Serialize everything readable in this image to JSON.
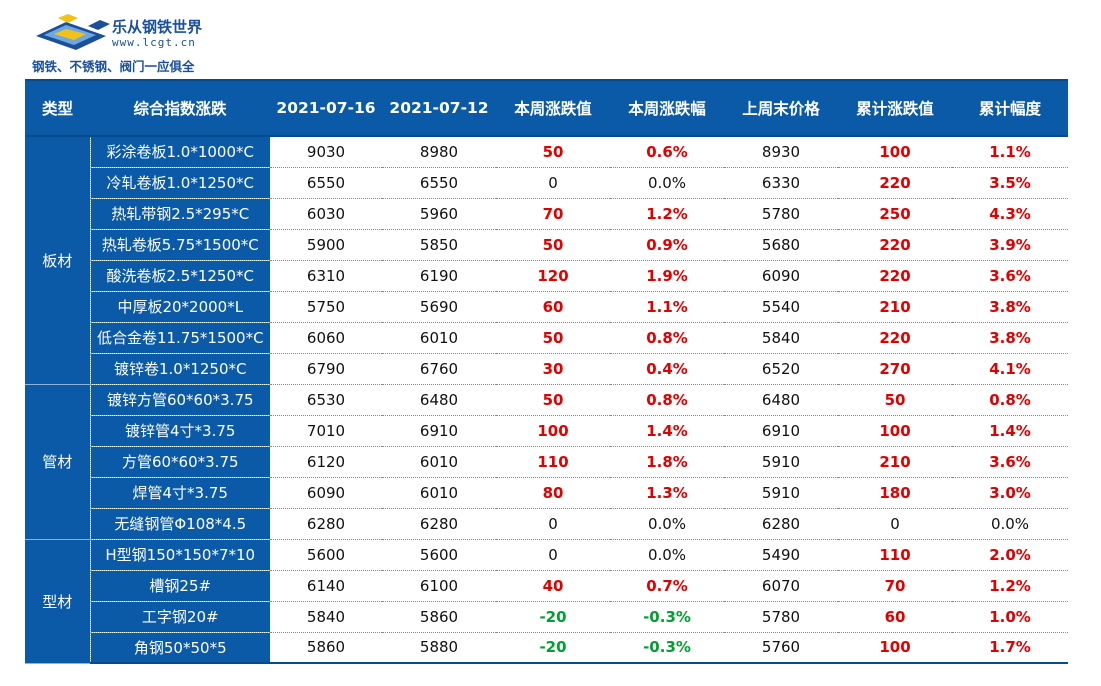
{
  "logo": {
    "name": "乐从钢铁世界",
    "url": "www.lcgt.cn",
    "slogan": "钢铁、不锈钢、阀门一应俱全"
  },
  "table": {
    "headers": [
      "类型",
      "综合指数涨跌",
      "2021-07-16",
      "2021-07-12",
      "本周涨跌值",
      "本周涨跌幅",
      "上周末价格",
      "累计涨跌值",
      "累计幅度"
    ],
    "groups": [
      {
        "type": "板材",
        "rows": [
          {
            "name": "彩涂卷板1.0*1000*C",
            "d1": "9030",
            "d2": "8980",
            "wchg": "50",
            "wpct": "0.6%",
            "last": "8930",
            "cchg": "100",
            "cpct": "1.1%"
          },
          {
            "name": "冷轧卷板1.0*1250*C",
            "d1": "6550",
            "d2": "6550",
            "wchg": "0",
            "wpct": "0.0%",
            "last": "6330",
            "cchg": "220",
            "cpct": "3.5%"
          },
          {
            "name": "热轧带钢2.5*295*C",
            "d1": "6030",
            "d2": "5960",
            "wchg": "70",
            "wpct": "1.2%",
            "last": "5780",
            "cchg": "250",
            "cpct": "4.3%"
          },
          {
            "name": "热轧卷板5.75*1500*C",
            "d1": "5900",
            "d2": "5850",
            "wchg": "50",
            "wpct": "0.9%",
            "last": "5680",
            "cchg": "220",
            "cpct": "3.9%"
          },
          {
            "name": "酸洗卷板2.5*1250*C",
            "d1": "6310",
            "d2": "6190",
            "wchg": "120",
            "wpct": "1.9%",
            "last": "6090",
            "cchg": "220",
            "cpct": "3.6%"
          },
          {
            "name": "中厚板20*2000*L",
            "d1": "5750",
            "d2": "5690",
            "wchg": "60",
            "wpct": "1.1%",
            "last": "5540",
            "cchg": "210",
            "cpct": "3.8%"
          },
          {
            "name": "低合金卷11.75*1500*C",
            "d1": "6060",
            "d2": "6010",
            "wchg": "50",
            "wpct": "0.8%",
            "last": "5840",
            "cchg": "220",
            "cpct": "3.8%"
          },
          {
            "name": "镀锌卷1.0*1250*C",
            "d1": "6790",
            "d2": "6760",
            "wchg": "30",
            "wpct": "0.4%",
            "last": "6520",
            "cchg": "270",
            "cpct": "4.1%"
          }
        ]
      },
      {
        "type": "管材",
        "rows": [
          {
            "name": "镀锌方管60*60*3.75",
            "d1": "6530",
            "d2": "6480",
            "wchg": "50",
            "wpct": "0.8%",
            "last": "6480",
            "cchg": "50",
            "cpct": "0.8%"
          },
          {
            "name": "镀锌管4寸*3.75",
            "d1": "7010",
            "d2": "6910",
            "wchg": "100",
            "wpct": "1.4%",
            "last": "6910",
            "cchg": "100",
            "cpct": "1.4%"
          },
          {
            "name": "方管60*60*3.75",
            "d1": "6120",
            "d2": "6010",
            "wchg": "110",
            "wpct": "1.8%",
            "last": "5910",
            "cchg": "210",
            "cpct": "3.6%"
          },
          {
            "name": "焊管4寸*3.75",
            "d1": "6090",
            "d2": "6010",
            "wchg": "80",
            "wpct": "1.3%",
            "last": "5910",
            "cchg": "180",
            "cpct": "3.0%"
          },
          {
            "name": "无缝钢管Φ108*4.5",
            "d1": "6280",
            "d2": "6280",
            "wchg": "0",
            "wpct": "0.0%",
            "last": "6280",
            "cchg": "0",
            "cpct": "0.0%"
          }
        ]
      },
      {
        "type": "型材",
        "rows": [
          {
            "name": "H型钢150*150*7*10",
            "d1": "5600",
            "d2": "5600",
            "wchg": "0",
            "wpct": "0.0%",
            "last": "5490",
            "cchg": "110",
            "cpct": "2.0%"
          },
          {
            "name": "槽钢25#",
            "d1": "6140",
            "d2": "6100",
            "wchg": "40",
            "wpct": "0.7%",
            "last": "6070",
            "cchg": "70",
            "cpct": "1.2%"
          },
          {
            "name": "工字钢20#",
            "d1": "5840",
            "d2": "5860",
            "wchg": "-20",
            "wpct": "-0.3%",
            "last": "5780",
            "cchg": "60",
            "cpct": "1.0%"
          },
          {
            "name": "角钢50*50*5",
            "d1": "5860",
            "d2": "5880",
            "wchg": "-20",
            "wpct": "-0.3%",
            "last": "5760",
            "cchg": "100",
            "cpct": "1.7%"
          }
        ]
      }
    ]
  },
  "colors": {
    "header_bg": "#0a5aa8",
    "rise": "#e00000",
    "fall": "#00a030",
    "brand": "#1a4f9c"
  }
}
